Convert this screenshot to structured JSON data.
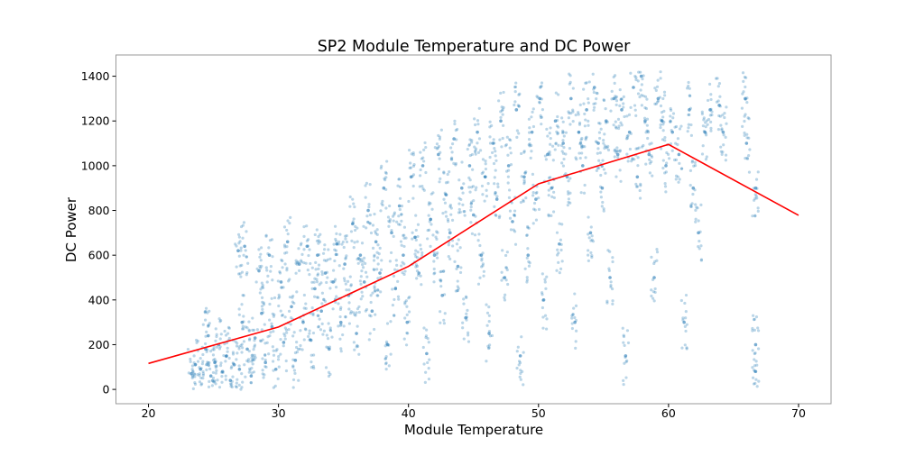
{
  "chart_data": {
    "type": "scatter",
    "title": "SP2 Module Temperature and DC Power",
    "xlabel": "Module Temperature",
    "ylabel": "DC Power",
    "xlim": [
      17.5,
      72.5
    ],
    "ylim": [
      -64,
      1495
    ],
    "xticks": [
      20,
      30,
      40,
      50,
      60,
      70
    ],
    "yticks": [
      0,
      200,
      400,
      600,
      800,
      1000,
      1200,
      1400
    ],
    "grid": false,
    "colors": {
      "scatter": "#1f77b4",
      "line": "#ff0000"
    },
    "scatter_sample": [
      [
        23.3,
        70
      ],
      [
        23.6,
        110
      ],
      [
        24.0,
        90
      ],
      [
        24.4,
        180
      ],
      [
        24.6,
        240
      ],
      [
        24.8,
        60
      ],
      [
        25.1,
        120
      ],
      [
        25.4,
        200
      ],
      [
        25.7,
        80
      ],
      [
        26.0,
        150
      ],
      [
        26.3,
        40
      ],
      [
        26.6,
        110
      ],
      [
        26.9,
        620
      ],
      [
        27.0,
        90
      ],
      [
        27.2,
        300
      ],
      [
        27.4,
        640
      ],
      [
        27.6,
        180
      ],
      [
        27.9,
        60
      ],
      [
        28.2,
        230
      ],
      [
        28.5,
        530
      ],
      [
        28.7,
        340
      ],
      [
        29.0,
        120
      ],
      [
        29.3,
        600
      ],
      [
        29.5,
        280
      ],
      [
        29.8,
        90
      ],
      [
        30.2,
        480
      ],
      [
        30.4,
        210
      ],
      [
        30.7,
        660
      ],
      [
        31.0,
        370
      ],
      [
        31.3,
        130
      ],
      [
        31.6,
        560
      ],
      [
        31.9,
        300
      ],
      [
        32.2,
        640
      ],
      [
        32.5,
        220
      ],
      [
        32.8,
        450
      ],
      [
        33.0,
        600
      ],
      [
        33.3,
        350
      ],
      [
        33.6,
        520
      ],
      [
        33.9,
        180
      ],
      [
        34.2,
        480
      ],
      [
        34.5,
        650
      ],
      [
        34.8,
        300
      ],
      [
        35.1,
        560
      ],
      [
        35.4,
        420
      ],
      [
        35.7,
        740
      ],
      [
        36.0,
        250
      ],
      [
        36.3,
        600
      ],
      [
        36.6,
        480
      ],
      [
        36.9,
        800
      ],
      [
        37.2,
        350
      ],
      [
        37.5,
        660
      ],
      [
        37.8,
        520
      ],
      [
        38.1,
        900
      ],
      [
        38.4,
        200
      ],
      [
        38.7,
        700
      ],
      [
        39.0,
        450
      ],
      [
        39.3,
        820
      ],
      [
        39.6,
        600
      ],
      [
        39.9,
        300
      ],
      [
        40.2,
        950
      ],
      [
        40.5,
        680
      ],
      [
        40.8,
        520
      ],
      [
        41.1,
        1000
      ],
      [
        41.4,
        160
      ],
      [
        41.7,
        760
      ],
      [
        42.0,
        600
      ],
      [
        42.3,
        1050
      ],
      [
        42.6,
        420
      ],
      [
        42.9,
        870
      ],
      [
        43.2,
        700
      ],
      [
        43.5,
        1120
      ],
      [
        43.8,
        550
      ],
      [
        44.1,
        900
      ],
      [
        44.4,
        320
      ],
      [
        44.7,
        1000
      ],
      [
        45.0,
        780
      ],
      [
        45.3,
        1150
      ],
      [
        45.6,
        600
      ],
      [
        45.9,
        950
      ],
      [
        46.2,
        250
      ],
      [
        46.5,
        1100
      ],
      [
        46.8,
        850
      ],
      [
        47.1,
        1200
      ],
      [
        47.4,
        500
      ],
      [
        47.7,
        1000
      ],
      [
        48.0,
        750
      ],
      [
        48.3,
        1250
      ],
      [
        48.6,
        150
      ],
      [
        48.9,
        950
      ],
      [
        49.2,
        600
      ],
      [
        49.5,
        1150
      ],
      [
        49.8,
        850
      ],
      [
        50.1,
        1300
      ],
      [
        50.4,
        400
      ],
      [
        50.7,
        1050
      ],
      [
        51.0,
        900
      ],
      [
        51.3,
        1200
      ],
      [
        51.6,
        650
      ],
      [
        51.9,
        1100
      ],
      [
        52.2,
        950
      ],
      [
        52.5,
        1300
      ],
      [
        52.8,
        300
      ],
      [
        53.1,
        1150
      ],
      [
        53.4,
        1000
      ],
      [
        53.7,
        1250
      ],
      [
        54.0,
        700
      ],
      [
        54.3,
        1350
      ],
      [
        54.6,
        1100
      ],
      [
        54.9,
        900
      ],
      [
        55.2,
        1200
      ],
      [
        55.5,
        500
      ],
      [
        55.8,
        1300
      ],
      [
        56.1,
        1050
      ],
      [
        56.4,
        1250
      ],
      [
        56.7,
        150
      ],
      [
        57.0,
        1150
      ],
      [
        57.3,
        1350
      ],
      [
        57.6,
        950
      ],
      [
        57.9,
        1400
      ],
      [
        58.2,
        1200
      ],
      [
        58.5,
        1050
      ],
      [
        58.9,
        500
      ],
      [
        59.2,
        1300
      ],
      [
        59.5,
        1200
      ],
      [
        59.8,
        1000
      ],
      [
        60.3,
        1150
      ],
      [
        60.8,
        1050
      ],
      [
        61.2,
        300
      ],
      [
        61.6,
        1250
      ],
      [
        61.9,
        900
      ],
      [
        62.3,
        700
      ],
      [
        62.8,
        1150
      ],
      [
        63.2,
        1250
      ],
      [
        63.9,
        1270
      ],
      [
        64.2,
        1150
      ],
      [
        65.9,
        1300
      ],
      [
        66.0,
        1100
      ],
      [
        66.7,
        900
      ],
      [
        66.7,
        80
      ],
      [
        66.7,
        200
      ]
    ],
    "line": {
      "x": [
        20,
        30,
        40,
        50,
        60,
        70
      ],
      "y": [
        116,
        279,
        550,
        919,
        1095,
        778
      ]
    }
  }
}
